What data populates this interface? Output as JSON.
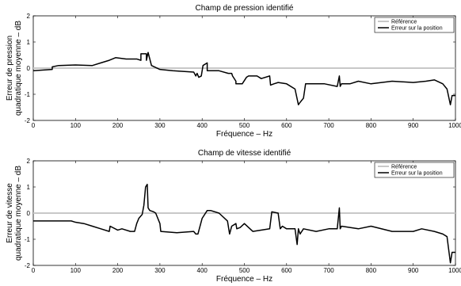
{
  "chart_data": [
    {
      "type": "line",
      "title": "Champ de pression identifié",
      "xlabel": "Fréquence  –  Hz",
      "ylabel_line1": "Erreur de pression",
      "ylabel_line2": "quadratique moyenne  –  dB",
      "xlim": [
        0,
        1000
      ],
      "ylim": [
        -2,
        2
      ],
      "xticks": [
        "0",
        "100",
        "200",
        "300",
        "400",
        "500",
        "600",
        "700",
        "800",
        "900",
        "1000"
      ],
      "yticks": [
        "-2",
        "-1",
        "0",
        "1",
        "2"
      ],
      "legend_position": "top-right",
      "series": [
        {
          "name": "Référence",
          "color": "#c8c8c8",
          "x": [
            0,
            1000
          ],
          "y": [
            0,
            0
          ]
        },
        {
          "name": "Erreur sur la position",
          "color": "#000000",
          "x": [
            0,
            45,
            45,
            60,
            100,
            140,
            160,
            180,
            195,
            220,
            245,
            255,
            255,
            268,
            268,
            272,
            280,
            300,
            330,
            380,
            385,
            388,
            392,
            398,
            402,
            412,
            412,
            440,
            462,
            470,
            472,
            480,
            480,
            495,
            505,
            510,
            530,
            540,
            560,
            562,
            570,
            580,
            600,
            620,
            628,
            630,
            640,
            645,
            660,
            690,
            720,
            725,
            727,
            730,
            750,
            770,
            800,
            850,
            900,
            930,
            950,
            970,
            980,
            988,
            992,
            1000
          ],
          "y": [
            -0.1,
            -0.05,
            0.05,
            0.1,
            0.12,
            0.1,
            0.2,
            0.3,
            0.4,
            0.35,
            0.35,
            0.3,
            0.55,
            0.55,
            0.3,
            0.6,
            0.1,
            -0.05,
            -0.1,
            -0.15,
            -0.3,
            -0.2,
            -0.35,
            -0.3,
            0.1,
            0.2,
            -0.1,
            -0.1,
            -0.2,
            -0.2,
            -0.3,
            -0.5,
            -0.6,
            -0.6,
            -0.35,
            -0.3,
            -0.3,
            -0.4,
            -0.3,
            -0.65,
            -0.6,
            -0.55,
            -0.6,
            -0.8,
            -1.4,
            -1.35,
            -1.15,
            -0.6,
            -0.6,
            -0.6,
            -0.7,
            -0.3,
            -0.7,
            -0.6,
            -0.6,
            -0.5,
            -0.6,
            -0.5,
            -0.55,
            -0.5,
            -0.45,
            -0.6,
            -0.8,
            -1.4,
            -1.05,
            -1.05
          ]
        }
      ]
    },
    {
      "type": "line",
      "title": "Champ de vitesse identifié",
      "xlabel": "Fréquence  –  Hz",
      "ylabel_line1": "Erreur de vitesse",
      "ylabel_line2": "quadratique moyenne  –  dB",
      "xlim": [
        0,
        1000
      ],
      "ylim": [
        -2,
        2
      ],
      "xticks": [
        "0",
        "100",
        "200",
        "300",
        "400",
        "500",
        "600",
        "700",
        "800",
        "900",
        "1000"
      ],
      "yticks": [
        "-2",
        "-1",
        "0",
        "1",
        "2"
      ],
      "legend_position": "top-right",
      "series": [
        {
          "name": "Référence",
          "color": "#c8c8c8",
          "x": [
            0,
            1000
          ],
          "y": [
            0,
            0
          ]
        },
        {
          "name": "Erreur sur la position",
          "color": "#000000",
          "x": [
            0,
            60,
            90,
            100,
            120,
            140,
            160,
            180,
            182,
            200,
            210,
            230,
            240,
            245,
            250,
            258,
            262,
            266,
            270,
            272,
            276,
            285,
            290,
            300,
            302,
            340,
            380,
            385,
            390,
            400,
            412,
            420,
            440,
            460,
            465,
            470,
            480,
            482,
            490,
            500,
            520,
            560,
            565,
            580,
            585,
            590,
            600,
            620,
            625,
            628,
            632,
            640,
            670,
            700,
            720,
            725,
            727,
            730,
            750,
            770,
            800,
            850,
            900,
            920,
            950,
            970,
            980,
            988,
            992,
            1000
          ],
          "y": [
            -0.3,
            -0.3,
            -0.3,
            -0.35,
            -0.4,
            -0.5,
            -0.6,
            -0.7,
            -0.5,
            -0.65,
            -0.6,
            -0.7,
            -0.7,
            -0.4,
            -0.2,
            -0.05,
            0.3,
            1.0,
            1.1,
            0.2,
            0.1,
            0.05,
            0.0,
            -0.4,
            -0.7,
            -0.75,
            -0.7,
            -0.8,
            -0.8,
            -0.2,
            0.1,
            0.1,
            0.0,
            -0.3,
            -0.8,
            -0.5,
            -0.4,
            -0.6,
            -0.55,
            -0.4,
            -0.7,
            -0.6,
            0.05,
            0.0,
            -0.6,
            -0.5,
            -0.6,
            -0.6,
            -1.2,
            -0.6,
            -0.8,
            -0.6,
            -0.7,
            -0.6,
            -0.6,
            0.2,
            -0.6,
            -0.5,
            -0.55,
            -0.6,
            -0.5,
            -0.7,
            -0.7,
            -0.6,
            -0.7,
            -0.8,
            -0.9,
            -1.9,
            -1.5,
            -1.5
          ]
        }
      ]
    }
  ]
}
